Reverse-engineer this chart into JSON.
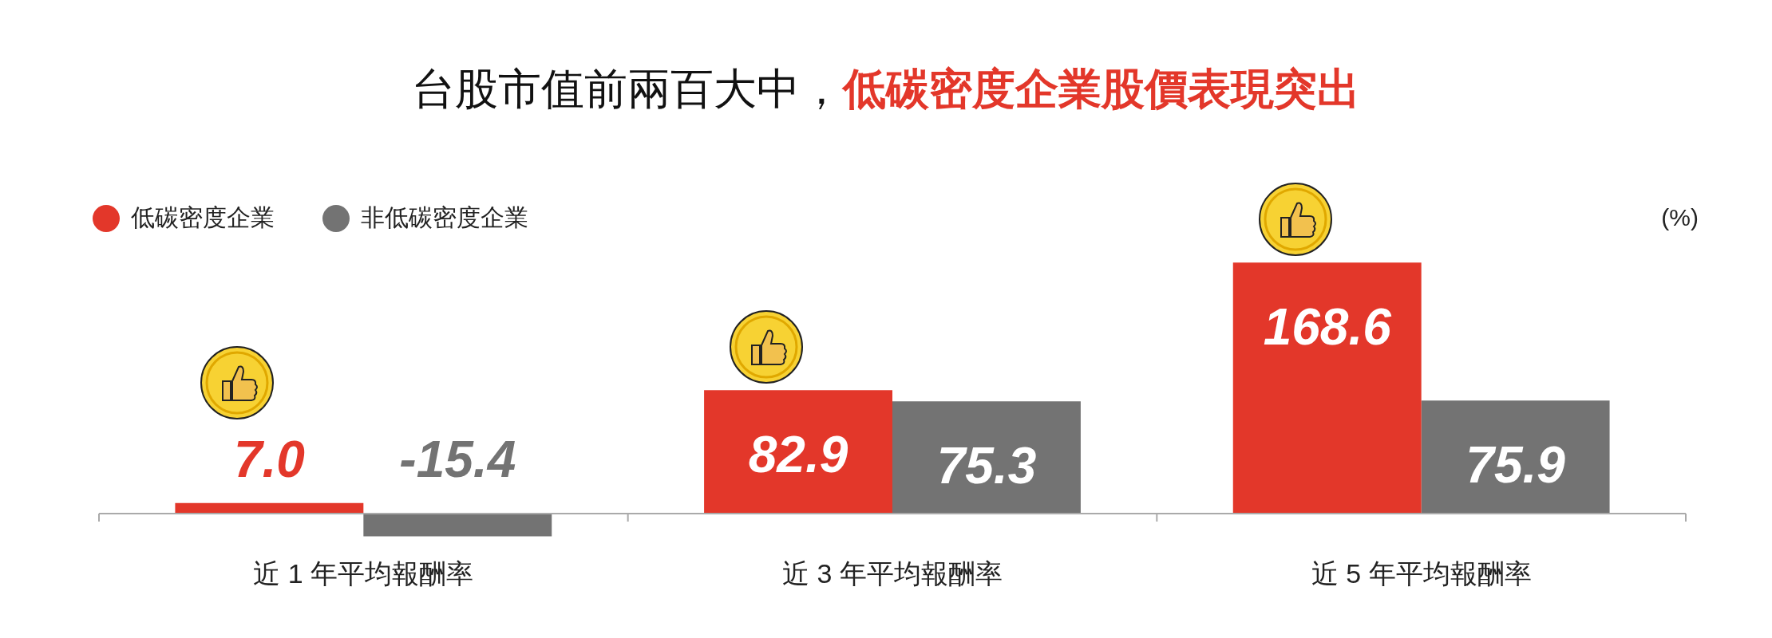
{
  "chart_data": {
    "type": "bar",
    "title": "台股市值前兩百大中，",
    "subtitle": "低碳密度企業股價表現突出",
    "categories": [
      "近 1 年平均報酬率",
      "近 3 年平均報酬率",
      "近 5 年平均報酬率"
    ],
    "series": [
      {
        "name": "低碳密度企業",
        "color": "#e3372a",
        "values": [
          7.0,
          82.9,
          168.6
        ],
        "value_labels": [
          "7.0",
          "82.9",
          "168.6"
        ]
      },
      {
        "name": "非低碳密度企業",
        "color": "#737373",
        "values": [
          -15.4,
          75.3,
          75.9
        ],
        "value_labels": [
          "-15.4",
          "75.3",
          "75.9"
        ]
      }
    ],
    "legend": "top left",
    "grid": false,
    "annotations": [
      "(%)"
    ]
  }
}
